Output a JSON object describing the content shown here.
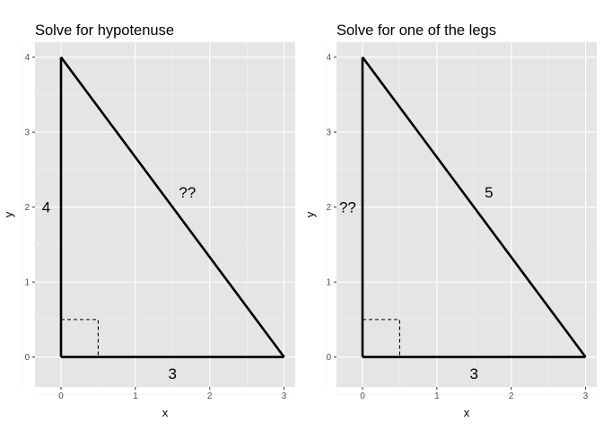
{
  "chart_data": [
    {
      "type": "line",
      "title": "Solve for hypotenuse",
      "xlabel": "x",
      "ylabel": "y",
      "xlim": [
        -0.35,
        3.15
      ],
      "ylim": [
        -0.4,
        4.2
      ],
      "x_ticks": [
        0,
        1,
        2,
        3
      ],
      "y_ticks": [
        0,
        1,
        2,
        3,
        4
      ],
      "grid": true,
      "triangle": [
        [
          0,
          0
        ],
        [
          3,
          0
        ],
        [
          0,
          4
        ]
      ],
      "right_angle_marker_size": 0.5,
      "edge_labels": [
        {
          "text": "4",
          "x": -0.2,
          "y": 2
        },
        {
          "text": "3",
          "x": 1.5,
          "y": -0.22
        },
        {
          "text": "??",
          "x": 1.7,
          "y": 2.2
        }
      ]
    },
    {
      "type": "line",
      "title": "Solve for one of the legs",
      "xlabel": "x",
      "ylabel": "y",
      "xlim": [
        -0.35,
        3.15
      ],
      "ylim": [
        -0.4,
        4.2
      ],
      "x_ticks": [
        0,
        1,
        2,
        3
      ],
      "y_ticks": [
        0,
        1,
        2,
        3,
        4
      ],
      "grid": true,
      "triangle": [
        [
          0,
          0
        ],
        [
          3,
          0
        ],
        [
          0,
          4
        ]
      ],
      "right_angle_marker_size": 0.5,
      "edge_labels": [
        {
          "text": "??",
          "x": -0.2,
          "y": 2
        },
        {
          "text": "3",
          "x": 1.5,
          "y": -0.22
        },
        {
          "text": "5",
          "x": 1.7,
          "y": 2.2
        }
      ]
    }
  ]
}
